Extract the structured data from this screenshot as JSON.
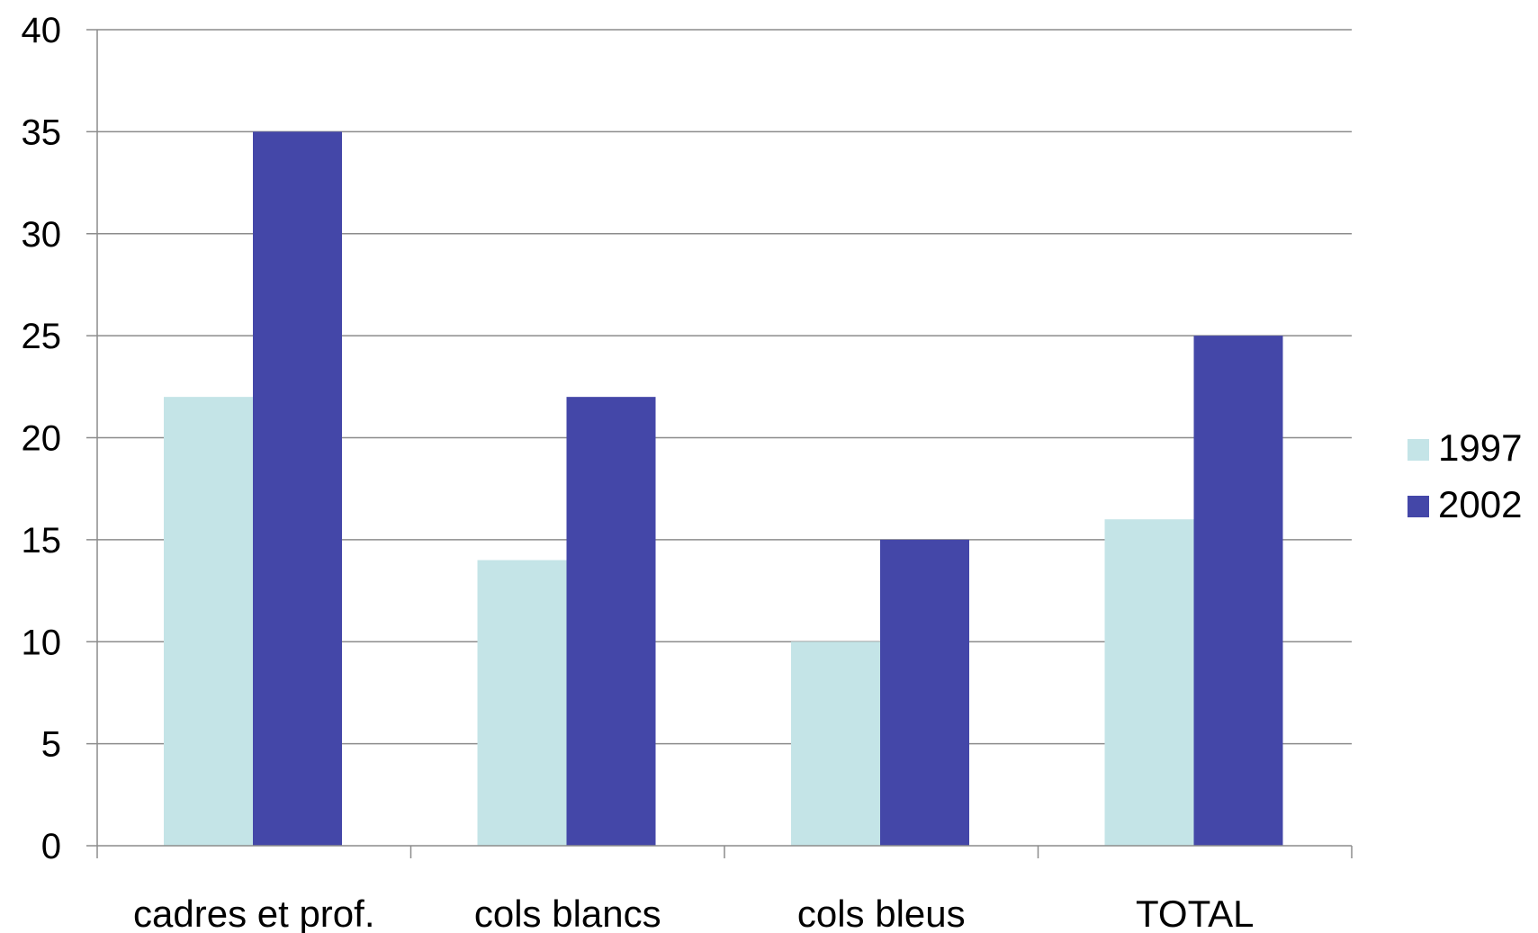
{
  "chart_data": {
    "type": "bar",
    "title": "",
    "xlabel": "",
    "ylabel": "",
    "categories": [
      "cadres et prof.",
      "cols blancs",
      "cols bleus",
      "TOTAL"
    ],
    "series": [
      {
        "name": "1997",
        "values": [
          22,
          14,
          10,
          16
        ],
        "color": "#c4e4e7"
      },
      {
        "name": "2002",
        "values": [
          35,
          22,
          15,
          25
        ],
        "color": "#4447a8"
      }
    ],
    "ylim": [
      0,
      40
    ],
    "yticks": [
      "0",
      "5",
      "10",
      "15",
      "20",
      "25",
      "30",
      "35",
      "40"
    ],
    "grid": true,
    "legend_position": "right",
    "gridline_color": "#8c8c8c",
    "axis_color": "#8c8c8c"
  }
}
